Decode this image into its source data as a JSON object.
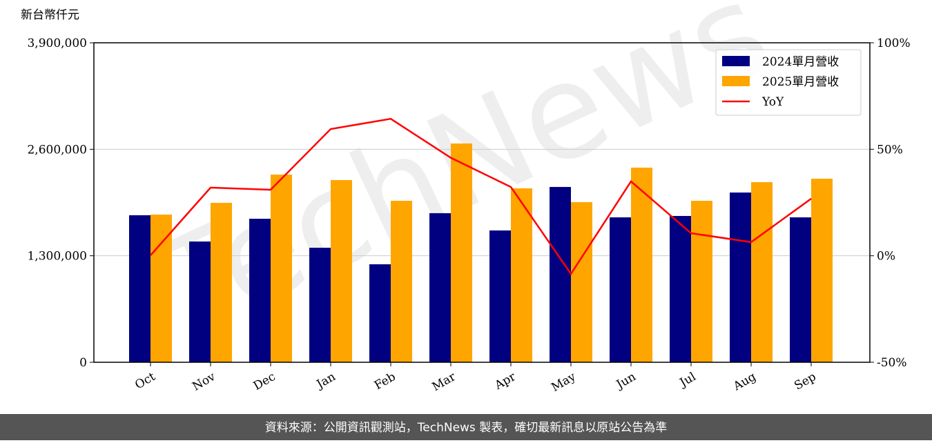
{
  "chart_data": {
    "type": "bar_line",
    "y_axis_label": "新台幣仟元",
    "categories": [
      "Oct",
      "Nov",
      "Dec",
      "Jan",
      "Feb",
      "Mar",
      "Apr",
      "May",
      "Jun",
      "Jul",
      "Aug",
      "Sep"
    ],
    "series": [
      {
        "name": "2024單月營收",
        "type": "bar",
        "color": "#000080",
        "values": [
          1795000,
          1474000,
          1752000,
          1398000,
          1196000,
          1820000,
          1609000,
          2140000,
          1769000,
          1786000,
          2072000,
          1769000
        ]
      },
      {
        "name": "2025單月營收",
        "type": "bar",
        "color": "#ffa500",
        "values": [
          1803000,
          1946000,
          2291000,
          2224000,
          1971000,
          2671000,
          2123000,
          1955000,
          2376000,
          1971000,
          2199000,
          2241000
        ]
      },
      {
        "name": "YoY",
        "type": "line",
        "axis": "y2",
        "color": "#ff0000",
        "values": [
          0.2,
          32,
          31,
          59.5,
          64.3,
          46,
          32.3,
          -8.5,
          34.9,
          10.6,
          6.4,
          26.8
        ]
      }
    ],
    "ylim": [
      0,
      3900000
    ],
    "yticks": [
      0,
      {
        "value": 1300000,
        "label": "1,300,000"
      },
      {
        "value": 2600000,
        "label": "2,600,000"
      },
      {
        "value": 3900000,
        "label": "3,900,000"
      }
    ],
    "y2lim": [
      -50,
      100
    ],
    "y2ticks": [
      {
        "value": -50,
        "label": "-50%"
      },
      {
        "value": 0,
        "label": "0%"
      },
      {
        "value": 50,
        "label": "50%"
      },
      {
        "value": 100,
        "label": "100%"
      }
    ],
    "grid": true,
    "legend": "upper right",
    "watermark": "TechNews",
    "footer": "資料來源：公開資訊觀測站，TechNews 製表，確切最新訊息以原站公告為準"
  }
}
